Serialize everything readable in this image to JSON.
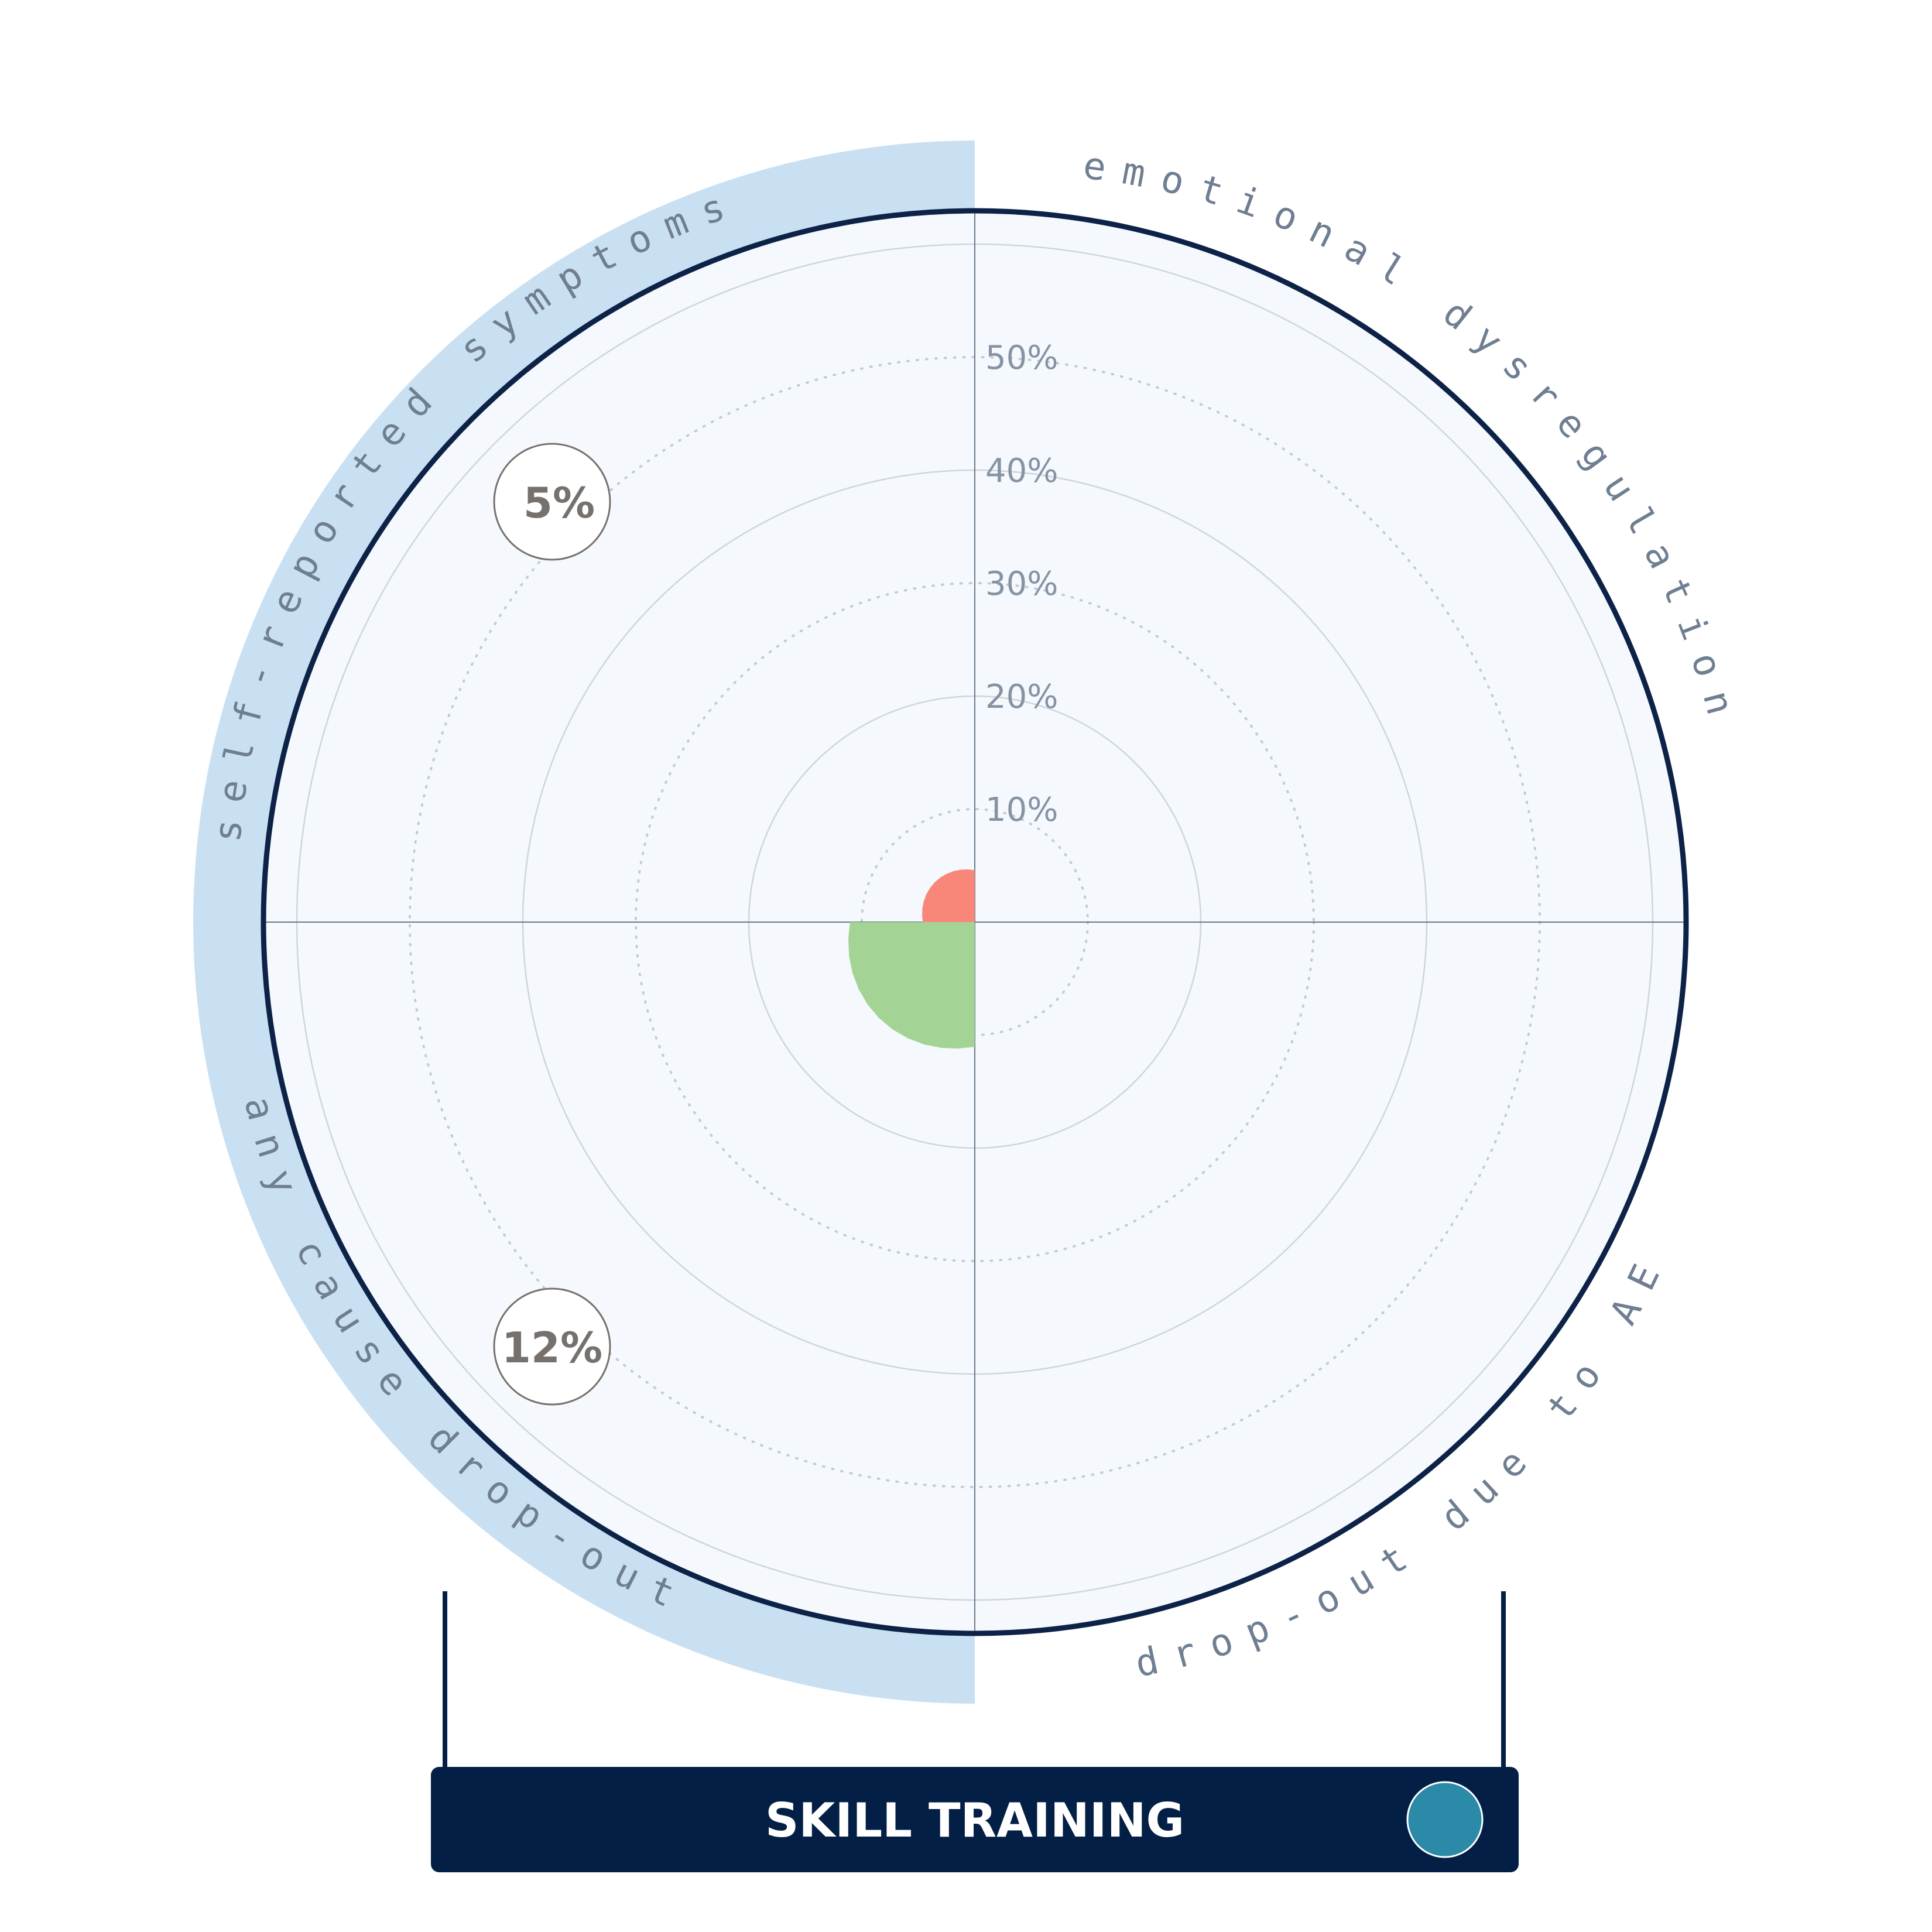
{
  "chart_data": {
    "type": "polar-bar",
    "title": "SKILL TRAINING",
    "radial_ticks": [
      "10%",
      "20%",
      "30%",
      "40%",
      "50%"
    ],
    "rmax_label_percent": 60,
    "categories": [
      {
        "name": "emotional dysregulation",
        "value": null,
        "badge": ""
      },
      {
        "name": "drop-out due to AE",
        "value": null,
        "badge": ""
      },
      {
        "name": "any cause drop-out",
        "value": 12,
        "badge": "12%",
        "highlight": true,
        "color": "#a3d395"
      },
      {
        "name": "self-reported symptoms",
        "value": 5,
        "badge": "5%",
        "highlight": true,
        "color": "#f8877a"
      }
    ],
    "colors": {
      "highlight_band": "#c9e0f3",
      "plot_background": "#f5f9fd",
      "outer_ring": "#0d2247",
      "banner": "#031f45",
      "banner_dot": "#2a8aa8"
    }
  }
}
